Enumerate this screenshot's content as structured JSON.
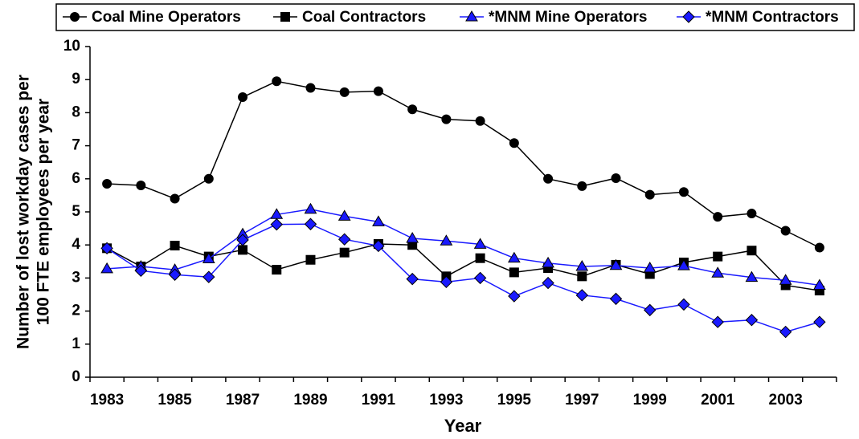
{
  "chart_data": {
    "type": "line",
    "xlabel": "Year",
    "ylabel": [
      "Number of lost workday cases per",
      "100 FTE employees per year"
    ],
    "categories": [
      "1983",
      null,
      "1985",
      null,
      "1987",
      null,
      "1989",
      null,
      "1991",
      null,
      "1993",
      null,
      "1995",
      null,
      "1997",
      null,
      "1999",
      null,
      "2001",
      null,
      "2003",
      null
    ],
    "series": [
      {
        "name": "Coal Mine Operators",
        "color": "#000000",
        "marker": "circle",
        "values": [
          5.85,
          5.8,
          5.4,
          6.0,
          8.47,
          8.95,
          8.75,
          8.62,
          8.65,
          8.1,
          7.8,
          7.75,
          7.08,
          6.0,
          5.78,
          6.02,
          5.52,
          5.6,
          4.85,
          4.95,
          4.43,
          3.92
        ]
      },
      {
        "name": "Coal Contractors",
        "color": "#000000",
        "marker": "square",
        "values": [
          3.9,
          3.35,
          3.98,
          3.65,
          3.85,
          3.25,
          3.55,
          3.77,
          4.03,
          4.0,
          3.05,
          3.6,
          3.17,
          3.3,
          3.05,
          3.4,
          3.12,
          3.47,
          3.65,
          3.83,
          2.78,
          2.62
        ]
      },
      {
        "name": "*MNM Mine Operators",
        "color": "#1a1aff",
        "marker": "triangle",
        "values": [
          3.28,
          3.35,
          3.25,
          3.58,
          4.33,
          4.92,
          5.08,
          4.87,
          4.7,
          4.2,
          4.12,
          4.02,
          3.6,
          3.45,
          3.35,
          3.38,
          3.3,
          3.37,
          3.15,
          3.02,
          2.93,
          2.78
        ]
      },
      {
        "name": "*MNM Contractors",
        "color": "#1a1aff",
        "marker": "diamond",
        "values": [
          3.9,
          3.22,
          3.1,
          3.03,
          4.15,
          4.62,
          4.63,
          4.17,
          3.97,
          2.97,
          2.88,
          3.0,
          2.45,
          2.85,
          2.48,
          2.37,
          2.03,
          2.2,
          1.67,
          1.73,
          1.37,
          1.67
        ]
      }
    ],
    "ylim": [
      0,
      10
    ],
    "yticks": [
      0,
      1,
      2,
      3,
      4,
      5,
      6,
      7,
      8,
      9,
      10
    ],
    "legend": "top"
  }
}
